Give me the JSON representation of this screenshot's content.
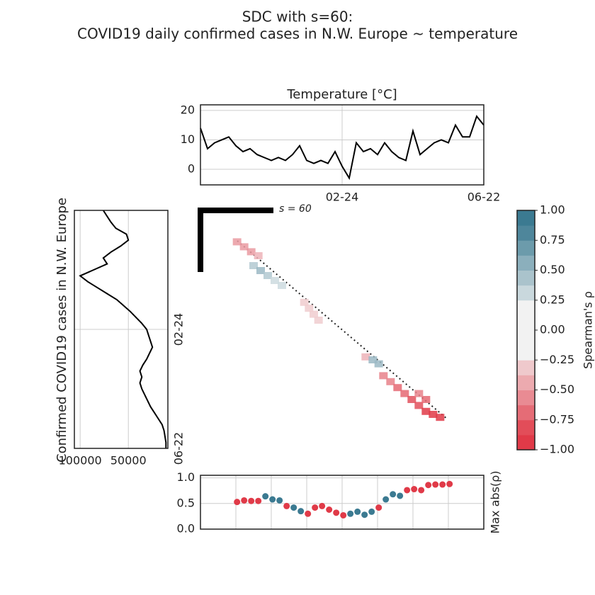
{
  "title_lines": [
    "SDC with s=60:",
    "COVID19 daily confirmed cases in N.W. Europe ~ temperature"
  ],
  "chart_data": [
    {
      "type": "line",
      "title": "Temperature [°C]",
      "color": "#000000",
      "grid": true,
      "x": [
        0,
        6,
        12,
        18,
        24,
        30,
        36,
        42,
        48,
        54,
        60,
        66,
        72,
        78,
        84,
        90,
        96,
        102,
        108,
        114,
        120,
        126,
        132,
        138,
        144,
        150,
        156,
        162,
        168,
        174,
        180,
        186,
        192,
        198,
        204,
        210,
        216,
        222,
        228,
        234,
        240
      ],
      "values": [
        14,
        7,
        9,
        10,
        11,
        8,
        6,
        7,
        5,
        4,
        3,
        4,
        3,
        5,
        8,
        3,
        2,
        3,
        2,
        6,
        1,
        -3,
        9,
        6,
        7,
        5,
        9,
        6,
        4,
        3,
        13,
        5,
        7,
        9,
        10,
        9,
        15,
        11,
        11,
        18,
        15
      ],
      "xlim": [
        0,
        240
      ],
      "xticks": [
        {
          "value": 120,
          "label": "02-24"
        },
        {
          "value": 240,
          "label": "06-22"
        }
      ],
      "ylim": [
        -5.3,
        21.9
      ],
      "yticks": [
        0,
        10,
        20
      ]
    },
    {
      "type": "line",
      "orientation": "horizontal",
      "ylabel": "Confirmed COVID19 cases in N.W. Europe",
      "color": "#000000",
      "grid": true,
      "x": [
        0,
        6,
        12,
        18,
        24,
        30,
        36,
        42,
        48,
        54,
        60,
        66,
        72,
        78,
        84,
        90,
        96,
        102,
        108,
        114,
        120,
        126,
        132,
        138,
        144,
        150,
        156,
        162,
        168,
        174,
        180,
        186,
        192,
        198,
        204,
        210,
        216,
        222,
        228,
        234,
        240
      ],
      "values": [
        76000,
        72000,
        68000,
        63000,
        52000,
        50000,
        58000,
        68000,
        76000,
        72000,
        86000,
        100000,
        92000,
        82000,
        72000,
        62000,
        55000,
        48000,
        42000,
        36000,
        31000,
        29000,
        27000,
        25000,
        28000,
        31000,
        35000,
        38000,
        36000,
        38000,
        36000,
        33000,
        30000,
        27000,
        23000,
        19000,
        15000,
        13000,
        12000,
        11000,
        11000
      ],
      "xlim": [
        106000,
        9000
      ],
      "xticks": [
        100000,
        50000
      ],
      "ylim": [
        0,
        240
      ],
      "yticks": [
        {
          "value": 120,
          "label": "02-24"
        },
        {
          "value": 240,
          "label": "06-22"
        }
      ]
    },
    {
      "type": "heatmap",
      "annotation": "s = 60",
      "x": [
        31,
        37,
        43,
        49,
        45,
        51,
        57,
        63,
        69,
        88,
        92,
        96,
        100,
        140,
        146,
        151,
        155,
        161,
        167,
        173,
        179,
        185,
        191,
        197,
        203,
        191,
        185
      ],
      "y": [
        31,
        36,
        41,
        45,
        55,
        60,
        65,
        70,
        75,
        92,
        98,
        104,
        110,
        147,
        150,
        154,
        166,
        172,
        178,
        184,
        190,
        196,
        202,
        205,
        208,
        190,
        184
      ],
      "values": [
        -0.5,
        -0.5,
        -0.5,
        -0.4,
        0.4,
        0.5,
        0.4,
        0.3,
        0.3,
        -0.3,
        -0.3,
        -0.3,
        -0.3,
        -0.4,
        0.5,
        0.5,
        -0.6,
        -0.6,
        -0.7,
        -0.7,
        -0.8,
        -0.8,
        -0.9,
        -0.9,
        -1.0,
        -0.7,
        -0.6
      ],
      "xlim": [
        0,
        240
      ],
      "ylim": [
        0,
        240
      ],
      "colorbar": {
        "label": "Spearman's ρ",
        "lim": [
          -1,
          1
        ],
        "neg_color": "#e03a48",
        "pos_color": "#3b7a91",
        "mid_color": "#f2f2f2",
        "ticks": [
          {
            "value": 1,
            "label": "1.00"
          },
          {
            "value": 0.75,
            "label": "0.75"
          },
          {
            "value": 0.5,
            "label": "0.50"
          },
          {
            "value": 0.25,
            "label": "0.25"
          },
          {
            "value": 0,
            "label": "0.00"
          },
          {
            "value": -0.25,
            "label": "−0.25"
          },
          {
            "value": -0.5,
            "label": "−0.50"
          },
          {
            "value": -0.75,
            "label": "−0.75"
          },
          {
            "value": -1,
            "label": "−1.00"
          }
        ]
      }
    },
    {
      "type": "scatter",
      "ylabel": "Max abs(ρ)",
      "grid": true,
      "show_xtick_labels": false,
      "x": [
        31,
        37,
        43,
        49,
        55,
        61,
        67,
        73,
        79,
        85,
        91,
        97,
        103,
        109,
        115,
        121,
        127,
        133,
        139,
        145,
        151,
        157,
        163,
        169,
        175,
        181,
        187,
        193,
        199,
        205,
        211
      ],
      "values": [
        0.53,
        0.56,
        0.55,
        0.55,
        0.64,
        0.58,
        0.56,
        0.45,
        0.42,
        0.35,
        0.3,
        0.42,
        0.45,
        0.38,
        0.32,
        0.27,
        0.3,
        0.34,
        0.28,
        0.34,
        0.42,
        0.58,
        0.68,
        0.65,
        0.76,
        0.78,
        0.76,
        0.86,
        0.87,
        0.87,
        0.88
      ],
      "colors": [
        "#e03a48",
        "#e03a48",
        "#e03a48",
        "#e03a48",
        "#3b7a91",
        "#3b7a91",
        "#3b7a91",
        "#e03a48",
        "#3b7a91",
        "#3b7a91",
        "#e03a48",
        "#e03a48",
        "#e03a48",
        "#e03a48",
        "#e03a48",
        "#e03a48",
        "#3b7a91",
        "#3b7a91",
        "#3b7a91",
        "#3b7a91",
        "#e03a48",
        "#3b7a91",
        "#3b7a91",
        "#3b7a91",
        "#e03a48",
        "#e03a48",
        "#e03a48",
        "#e03a48",
        "#e03a48",
        "#e03a48",
        "#e03a48"
      ],
      "xlim": [
        0,
        240
      ],
      "xticks": [
        30,
        60,
        90,
        120,
        150,
        180,
        210
      ],
      "ylim": [
        0,
        1.05
      ],
      "yticks": [
        {
          "value": 0,
          "label": "0.0"
        },
        {
          "value": 0.5,
          "label": "0.5"
        },
        {
          "value": 1,
          "label": "1.0"
        }
      ]
    }
  ]
}
